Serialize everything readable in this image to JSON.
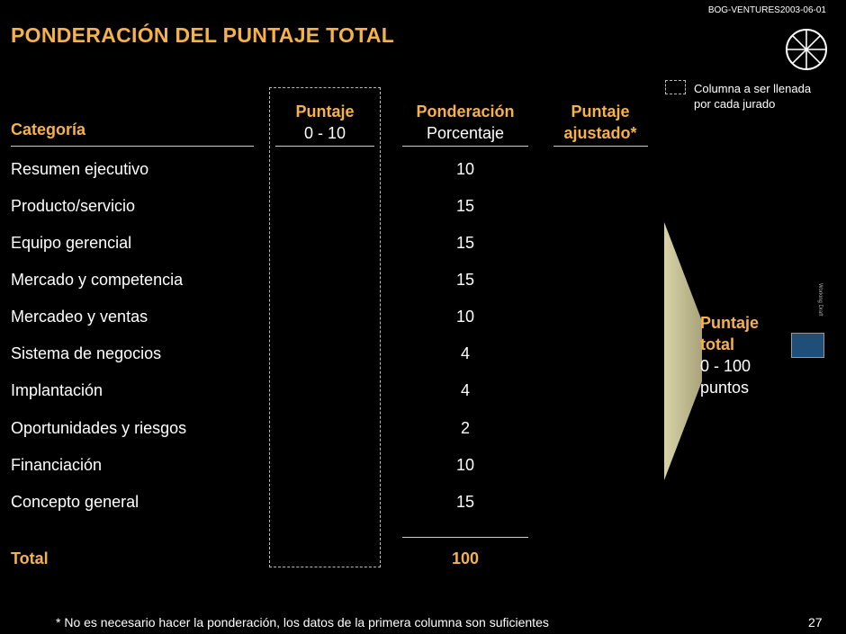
{
  "doc_id": "BOG-VENTURES2003-06-01",
  "title": "PONDERACIÓN DEL PUNTAJE TOTAL",
  "legend": {
    "text_line1": "Columna a ser llenada",
    "text_line2": "por cada jurado"
  },
  "headers": {
    "categoria": "Categoría",
    "puntaje_title": "Puntaje",
    "puntaje_range": "0 - 10",
    "ponderacion_title": "Ponderación",
    "ponderacion_sub": "Porcentaje",
    "ajustado_line1": "Puntaje",
    "ajustado_line2": "ajustado*"
  },
  "rows": [
    {
      "categoria": "Resumen ejecutivo",
      "ponderacion": "10"
    },
    {
      "categoria": "Producto/servicio",
      "ponderacion": "15"
    },
    {
      "categoria": "Equipo gerencial",
      "ponderacion": "15"
    },
    {
      "categoria": "Mercado y competencia",
      "ponderacion": "15"
    },
    {
      "categoria": "Mercadeo y ventas",
      "ponderacion": "10"
    },
    {
      "categoria": "Sistema de negocios",
      "ponderacion": "4"
    },
    {
      "categoria": "Implantación",
      "ponderacion": "4"
    },
    {
      "categoria": "Oportunidades y riesgos",
      "ponderacion": "2"
    },
    {
      "categoria": "Financiación",
      "ponderacion": "10"
    },
    {
      "categoria": "Concepto general",
      "ponderacion": "15"
    }
  ],
  "total": {
    "label": "Total",
    "value": "100"
  },
  "puntaje_total": {
    "line1": "Puntaje",
    "line2": "total",
    "line3": "0 - 100",
    "line4": "puntos"
  },
  "working_draft": "Working Draft",
  "footnote": "* No es necesario hacer la ponderación, los datos de la primera columna son suficientes",
  "page_number": "27",
  "colors": {
    "accent": "#F5B14C",
    "background": "#000000",
    "score_box": "#1F4E79"
  }
}
